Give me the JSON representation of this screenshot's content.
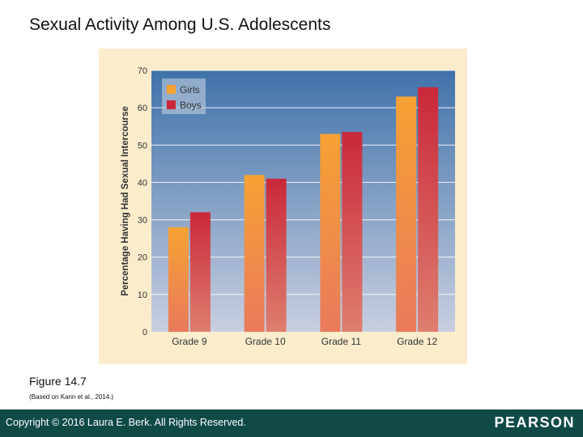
{
  "slide": {
    "title": "Sexual Activity Among U.S. Adolescents",
    "caption": "Figure 14.7",
    "source": "(Based on Kann et al., 2014.)"
  },
  "footer": {
    "copyright": "Copyright © 2016 Laura E. Berk. All Rights Reserved.",
    "brand": "PEARSON"
  },
  "chart_data": {
    "type": "bar",
    "title": "",
    "xlabel": "",
    "ylabel": "Percentage Having Had Sexual Intercourse",
    "categories": [
      "Grade 9",
      "Grade 10",
      "Grade 11",
      "Grade 12"
    ],
    "series": [
      {
        "name": "Girls",
        "values": [
          28,
          42,
          53,
          63
        ],
        "color": "#f6a233"
      },
      {
        "name": "Boys",
        "values": [
          32,
          41,
          53.5,
          65.5
        ],
        "color": "#c9283a"
      }
    ],
    "ylim": [
      0,
      70
    ],
    "yticks": [
      "0",
      "10",
      "20",
      "30",
      "40",
      "50",
      "60",
      "70"
    ],
    "grid": true,
    "legend": "top-left",
    "colors": {
      "plot_top": "#3f72aa",
      "plot_bottom": "#c9cfe0",
      "panel": "#fbedcc"
    }
  }
}
